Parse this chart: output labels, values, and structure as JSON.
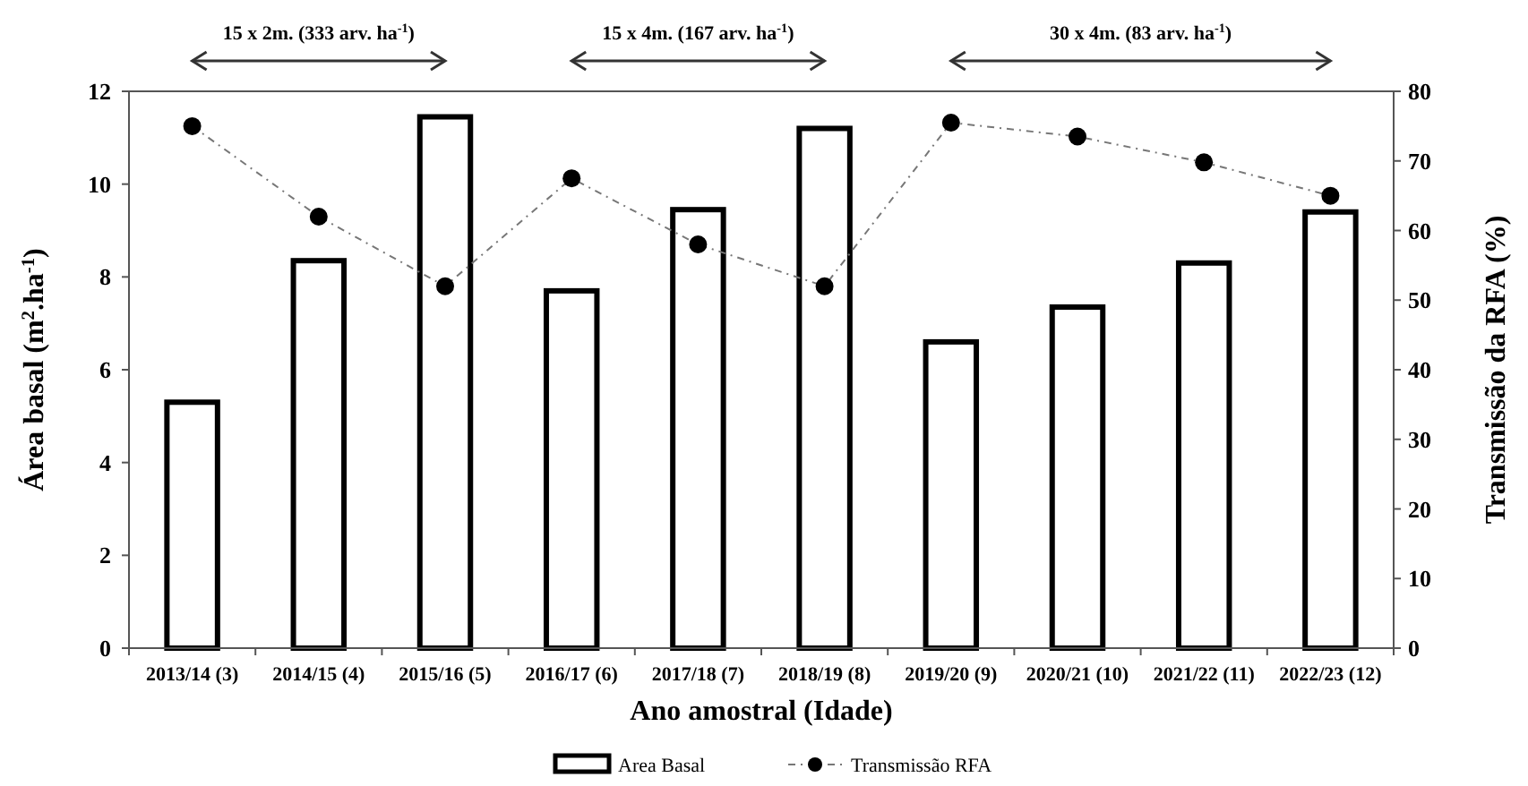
{
  "chart_data": {
    "type": "bar",
    "xlabel": "Ano amostral (Idade)",
    "ylabel": "Área basal (m$^{2}$.ha$^{-1}$)",
    "y2label": "Transmissão da RFA (%)",
    "categories": [
      "2013/14 (3)",
      "2014/15 (4)",
      "2015/16 (5)",
      "2016/17 (6)",
      "2017/18 (7)",
      "2018/19 (8)",
      "2019/20 (9)",
      "2020/21 (10)",
      "2021/22 (11)",
      "2022/23 (12)"
    ],
    "series": [
      {
        "name": "Area Basal",
        "color": "#ffffff",
        "values": [
          5.3,
          8.35,
          11.45,
          7.7,
          9.45,
          11.2,
          6.6,
          7.35,
          8.3,
          9.4
        ]
      },
      {
        "name": "Transmissão RFA",
        "type": "line",
        "axis": "y2",
        "color": "#000000",
        "marker": "circle",
        "line_style": "dashed",
        "values": [
          75,
          62,
          52,
          67.5,
          58,
          52,
          75.5,
          73.5,
          69.8,
          65
        ]
      }
    ],
    "ylim": [
      0,
      12
    ],
    "yticks": [
      0,
      2,
      4,
      6,
      8,
      10,
      12
    ],
    "y2lim": [
      0,
      80
    ],
    "y2ticks": [
      0,
      10,
      20,
      30,
      40,
      50,
      60,
      70,
      80
    ],
    "annotations": [
      "15 x 2m. (333 arv. ha$^{-1}$)",
      "15 x 4m. (167 arv. ha$^{-1}$)",
      "30 x 4m. (83 arv. ha$^{-1}$)"
    ],
    "legend": "bottom",
    "grid": false
  }
}
